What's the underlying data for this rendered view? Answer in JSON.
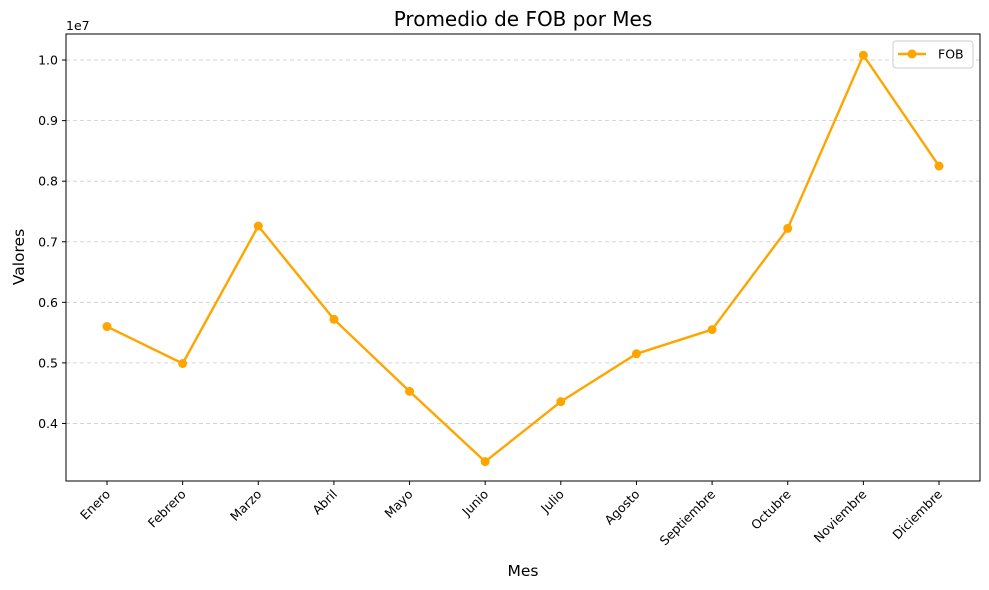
{
  "chart_data": {
    "type": "line",
    "title": "Promedio de FOB por Mes",
    "xlabel": "Mes",
    "ylabel": "Valores",
    "y_offset_label": "1e7",
    "categories": [
      "Enero",
      "Febrero",
      "Marzo",
      "Abril",
      "Mayo",
      "Junio",
      "Julio",
      "Agosto",
      "Septiembre",
      "Octubre",
      "Noviembre",
      "Diciembre"
    ],
    "series": [
      {
        "name": "FOB",
        "color": "#FFA500",
        "values": [
          0.56,
          0.499,
          0.726,
          0.572,
          0.453,
          0.337,
          0.436,
          0.515,
          0.555,
          0.722,
          1.008,
          0.825
        ]
      }
    ],
    "y_ticks": [
      "0.4",
      "0.5",
      "0.6",
      "0.7",
      "0.8",
      "0.9",
      "1.0"
    ],
    "ylim": [
      0.305,
      1.043
    ],
    "grid": "y-dashed",
    "legend_position": "top-right",
    "x_tick_rotation": 45
  }
}
